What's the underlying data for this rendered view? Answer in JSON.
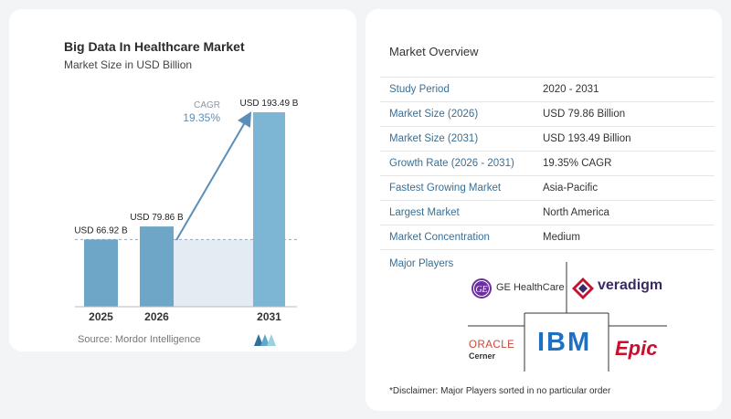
{
  "chart": {
    "title": "Big Data In Healthcare Market",
    "subtitle": "Market Size in USD Billion",
    "source": "Source: Mordor Intelligence",
    "cagr_label": "CAGR",
    "cagr_value": "19.35%"
  },
  "chart_data": {
    "type": "bar",
    "categories": [
      "2025",
      "2026",
      "2031"
    ],
    "values": [
      66.92,
      79.86,
      193.49
    ],
    "value_labels": [
      "USD 66.92 B",
      "USD 79.86 B",
      "USD 193.49 B"
    ],
    "title": "Big Data In Healthcare Market",
    "subtitle": "Market Size in USD Billion",
    "xlabel": "",
    "ylabel": "",
    "ylim": [
      0,
      200
    ],
    "grid": false,
    "annotations": [
      "CAGR",
      "19.35%"
    ],
    "colors": {
      "bar": "#6ea6c8",
      "bar_highlight": "#7cb6d4",
      "band": "#e3ebf3",
      "arrow": "#5b8fb8",
      "baseline": "#b8b8b8"
    }
  },
  "overview": {
    "title": "Market Overview",
    "rows": [
      {
        "key": "Study Period",
        "value": "2020 - 2031"
      },
      {
        "key": "Market Size (2026)",
        "value": "USD 79.86 Billion"
      },
      {
        "key": "Market Size (2031)",
        "value": "USD 193.49 Billion"
      },
      {
        "key": "Growth Rate (2026 - 2031)",
        "value": "19.35% CAGR"
      },
      {
        "key": "Fastest Growing Market",
        "value": "Asia-Pacific"
      },
      {
        "key": "Largest Market",
        "value": "North America"
      },
      {
        "key": "Market Concentration",
        "value": "Medium"
      }
    ]
  },
  "players": {
    "title": "Major Players",
    "ge": "GE HealthCare",
    "veradigm": "veradigm",
    "oracle_top": "ORACLE",
    "oracle_bottom": "Cerner",
    "ibm": "IBM",
    "epic": "Epic"
  },
  "disclaimer": "*Disclaimer: Major Players sorted in no particular order",
  "colors": {
    "key_text": "#3a6f95",
    "ge_purple": "#6b2fa0",
    "veradigm_red": "#c8102e",
    "ibm_blue": "#1f70c1",
    "epic_red": "#c8102e",
    "oracle_red": "#c74634"
  }
}
